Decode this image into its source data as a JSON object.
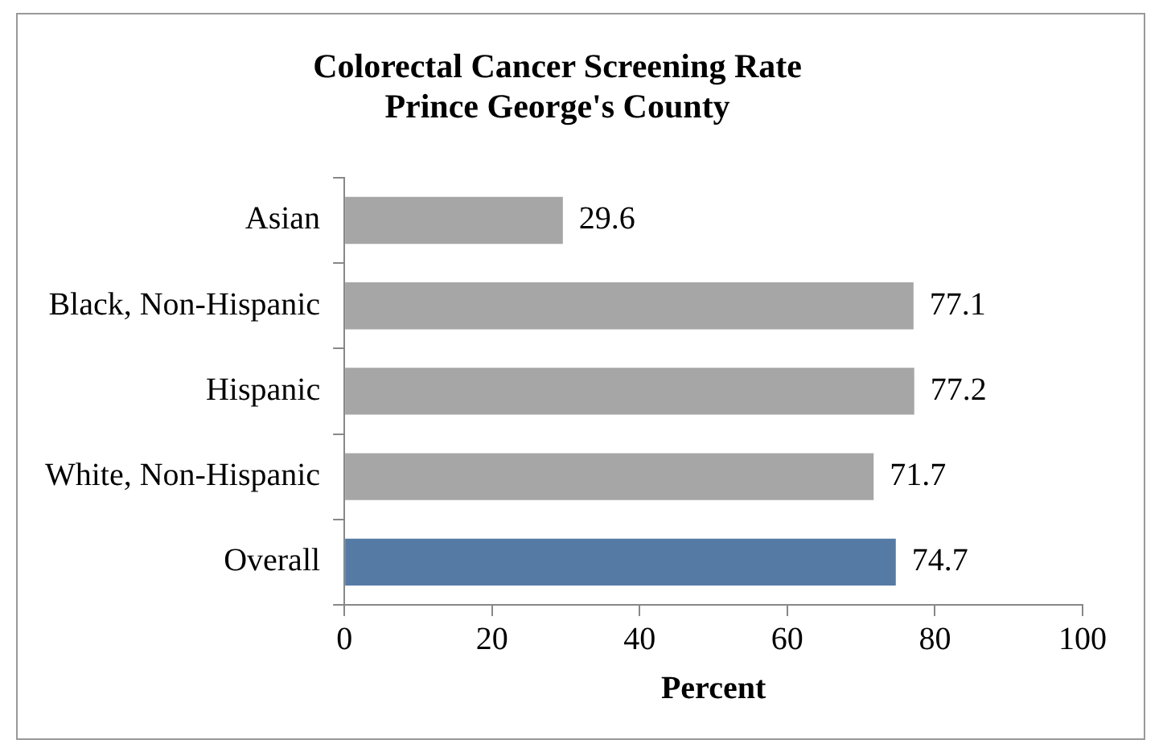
{
  "chart_data": {
    "type": "bar",
    "orientation": "horizontal",
    "title": [
      "Colorectal Cancer Screening Rate",
      "Prince George's County"
    ],
    "xlabel": "Percent",
    "categories": [
      "Asian",
      "Black, Non-Hispanic",
      "Hispanic",
      "White, Non-Hispanic",
      "Overall"
    ],
    "values": [
      29.6,
      77.1,
      77.2,
      71.7,
      74.7
    ],
    "colors": [
      "#a6a6a6",
      "#a6a6a6",
      "#a6a6a6",
      "#a6a6a6",
      "#557ba5"
    ],
    "xlim": [
      0,
      100
    ],
    "xticks": [
      0,
      20,
      40,
      60,
      80,
      100
    ],
    "grid": false,
    "legend": false,
    "data_labels": true
  }
}
